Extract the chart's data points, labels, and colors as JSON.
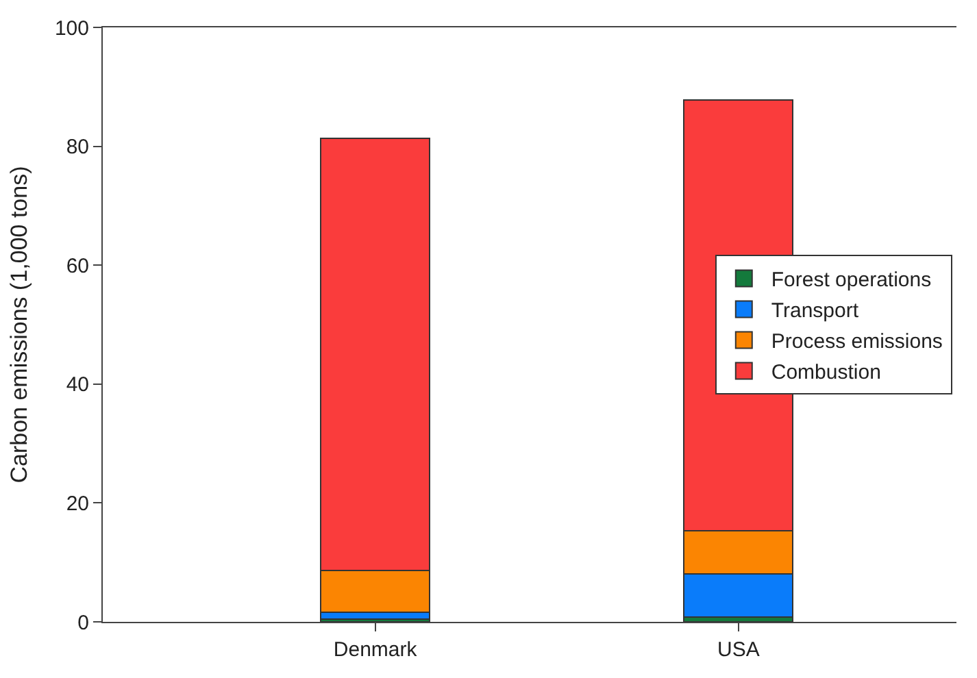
{
  "chart_data": {
    "type": "bar",
    "stacked": true,
    "ylabel": "Carbon emissions (1,000 tons)",
    "categories": [
      "Denmark",
      "USA"
    ],
    "series": [
      {
        "name": "Forest operations",
        "color": "#147a3c",
        "values": [
          0.5,
          0.8
        ]
      },
      {
        "name": "Transport",
        "color": "#0a7cfa",
        "values": [
          1.1,
          7.3
        ]
      },
      {
        "name": "Process emissions",
        "color": "#fb8502",
        "values": [
          7.0,
          7.2
        ]
      },
      {
        "name": "Combustion",
        "color": "#fa3c3c",
        "values": [
          72.7,
          72.5
        ]
      }
    ],
    "ylim": [
      0,
      100
    ],
    "yticks": [
      0,
      20,
      40,
      60,
      80,
      100
    ],
    "legend": "right"
  }
}
